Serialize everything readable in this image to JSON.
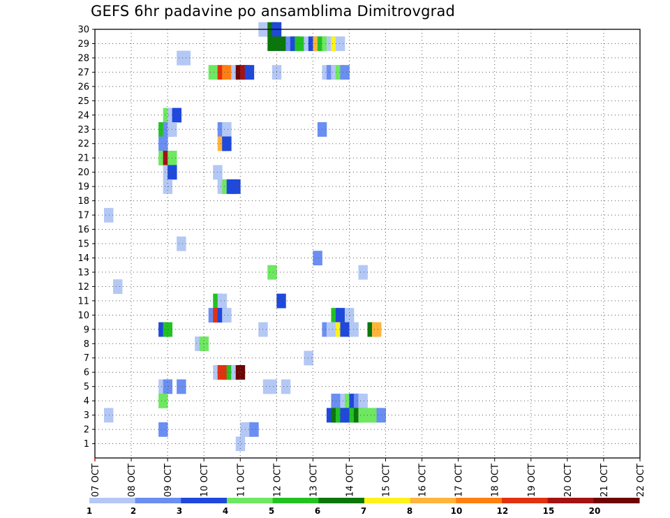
{
  "chart_data": {
    "type": "heatmap",
    "title": "GEFS 6hr padavine po ansamblima Dimitrovgrad",
    "xlabel": "",
    "ylabel": "",
    "x_tick_labels": [
      "07 OCT",
      "08 OCT",
      "09 OCT",
      "10 OCT",
      "11 OCT",
      "12 OCT",
      "13 OCT",
      "14 OCT",
      "15 OCT",
      "16 OCT",
      "17 OCT",
      "18 OCT",
      "19 OCT",
      "20 OCT",
      "21 OCT",
      "22 OCT"
    ],
    "xlim_days": [
      7,
      22
    ],
    "y_tick_labels": [
      "1",
      "2",
      "3",
      "4",
      "5",
      "6",
      "7",
      "8",
      "9",
      "10",
      "11",
      "12",
      "13",
      "14",
      "15",
      "16",
      "17",
      "18",
      "19",
      "20",
      "21",
      "22",
      "23",
      "24",
      "25",
      "26",
      "27",
      "28",
      "29",
      "30"
    ],
    "ylim": [
      0,
      30
    ],
    "grid": true,
    "legend": {
      "placement": "bottom",
      "colors": [
        "#b4c8f5",
        "#6a8ef2",
        "#1f48dc",
        "#6ee860",
        "#22c222",
        "#0b760b",
        "#fff21a",
        "#ffb43b",
        "#ff8010",
        "#e13210",
        "#a51212",
        "#6e0404"
      ],
      "labels": [
        "1",
        "2",
        "3",
        "4",
        "5",
        "6",
        "7",
        "8",
        "10",
        "12",
        "15",
        "20"
      ]
    },
    "cells": [
      {
        "day": 11.5,
        "m": 30,
        "v": 1.5
      },
      {
        "day": 11.75,
        "m": 30,
        "v": 6.5
      },
      {
        "day": 11.875,
        "m": 30,
        "v": 3.5
      },
      {
        "day": 11.75,
        "m": 29,
        "v": 6.5
      },
      {
        "day": 12.0,
        "m": 29,
        "v": 6.5
      },
      {
        "day": 12.25,
        "m": 29,
        "v": 2.5
      },
      {
        "day": 12.375,
        "m": 29,
        "v": 3.5
      },
      {
        "day": 12.5,
        "m": 29,
        "v": 5.5
      },
      {
        "day": 12.75,
        "m": 29,
        "v": 1.5
      },
      {
        "day": 12.875,
        "m": 29,
        "v": 3.5
      },
      {
        "day": 13.0,
        "m": 29,
        "v": 9
      },
      {
        "day": 13.125,
        "m": 29,
        "v": 5.5
      },
      {
        "day": 13.25,
        "m": 29,
        "v": 4.5
      },
      {
        "day": 13.375,
        "m": 29,
        "v": 1.5
      },
      {
        "day": 13.5,
        "m": 29,
        "v": 7.5
      },
      {
        "day": 13.625,
        "m": 29,
        "v": 1.5
      },
      {
        "day": 9.25,
        "m": 28,
        "v": 1.5
      },
      {
        "day": 9.375,
        "m": 28,
        "v": 1.5
      },
      {
        "day": 10.125,
        "m": 27,
        "v": 4.5
      },
      {
        "day": 10.375,
        "m": 27,
        "v": 13
      },
      {
        "day": 10.5,
        "m": 27,
        "v": 11
      },
      {
        "day": 10.75,
        "m": 27,
        "v": 1.5
      },
      {
        "day": 10.875,
        "m": 27,
        "v": 25
      },
      {
        "day": 11.0,
        "m": 27,
        "v": 17
      },
      {
        "day": 11.125,
        "m": 27,
        "v": 3.5
      },
      {
        "day": 11.875,
        "m": 27,
        "v": 1.5
      },
      {
        "day": 13.25,
        "m": 27,
        "v": 1.5
      },
      {
        "day": 13.375,
        "m": 27,
        "v": 2.5
      },
      {
        "day": 13.5,
        "m": 27,
        "v": 1.5
      },
      {
        "day": 13.625,
        "m": 27,
        "v": 4.5
      },
      {
        "day": 13.75,
        "m": 27,
        "v": 2.5
      },
      {
        "day": 8.875,
        "m": 24,
        "v": 4.5
      },
      {
        "day": 9.0,
        "m": 24,
        "v": 1.5
      },
      {
        "day": 9.125,
        "m": 24,
        "v": 3.5
      },
      {
        "day": 8.75,
        "m": 23,
        "v": 5.5
      },
      {
        "day": 8.875,
        "m": 23,
        "v": 2.5
      },
      {
        "day": 9.0,
        "m": 23,
        "v": 1.5
      },
      {
        "day": 10.375,
        "m": 23,
        "v": 2.5
      },
      {
        "day": 10.5,
        "m": 23,
        "v": 1.5
      },
      {
        "day": 13.125,
        "m": 23,
        "v": 2.5
      },
      {
        "day": 8.75,
        "m": 22,
        "v": 2.5
      },
      {
        "day": 10.375,
        "m": 22,
        "v": 9
      },
      {
        "day": 10.5,
        "m": 22,
        "v": 3.5
      },
      {
        "day": 8.75,
        "m": 21,
        "v": 4.5
      },
      {
        "day": 8.875,
        "m": 21,
        "v": 17
      },
      {
        "day": 9.0,
        "m": 21,
        "v": 4.5
      },
      {
        "day": 8.875,
        "m": 20,
        "v": 1.5
      },
      {
        "day": 9.0,
        "m": 20,
        "v": 3.5
      },
      {
        "day": 10.25,
        "m": 20,
        "v": 1.5
      },
      {
        "day": 8.875,
        "m": 19,
        "v": 1.5
      },
      {
        "day": 10.375,
        "m": 19,
        "v": 1.5
      },
      {
        "day": 10.5,
        "m": 19,
        "v": 4.5
      },
      {
        "day": 10.625,
        "m": 19,
        "v": 3.5
      },
      {
        "day": 10.75,
        "m": 19,
        "v": 3.5
      },
      {
        "day": 7.25,
        "m": 17,
        "v": 1.5
      },
      {
        "day": 9.25,
        "m": 15,
        "v": 1.5
      },
      {
        "day": 13.0,
        "m": 14,
        "v": 2.5
      },
      {
        "day": 11.75,
        "m": 13,
        "v": 4.5
      },
      {
        "day": 14.25,
        "m": 13,
        "v": 1.5
      },
      {
        "day": 7.5,
        "m": 12,
        "v": 1.5
      },
      {
        "day": 10.25,
        "m": 11,
        "v": 5.5
      },
      {
        "day": 10.375,
        "m": 11,
        "v": 1.5
      },
      {
        "day": 12.0,
        "m": 11,
        "v": 3.5
      },
      {
        "day": 10.125,
        "m": 10,
        "v": 2.5
      },
      {
        "day": 10.25,
        "m": 10,
        "v": 13
      },
      {
        "day": 10.375,
        "m": 10,
        "v": 3.5
      },
      {
        "day": 10.5,
        "m": 10,
        "v": 1.5
      },
      {
        "day": 13.5,
        "m": 10,
        "v": 5.5
      },
      {
        "day": 13.625,
        "m": 10,
        "v": 3.5
      },
      {
        "day": 13.875,
        "m": 10,
        "v": 1.5
      },
      {
        "day": 8.75,
        "m": 9,
        "v": 3.5
      },
      {
        "day": 8.875,
        "m": 9,
        "v": 5.5
      },
      {
        "day": 11.5,
        "m": 9,
        "v": 1.5
      },
      {
        "day": 13.25,
        "m": 9,
        "v": 2.5
      },
      {
        "day": 13.375,
        "m": 9,
        "v": 1.5
      },
      {
        "day": 13.5,
        "m": 9,
        "v": 1.5
      },
      {
        "day": 13.625,
        "m": 9,
        "v": 7.5
      },
      {
        "day": 13.75,
        "m": 9,
        "v": 3.5
      },
      {
        "day": 14.0,
        "m": 9,
        "v": 1.5
      },
      {
        "day": 14.5,
        "m": 9,
        "v": 6.5
      },
      {
        "day": 14.625,
        "m": 9,
        "v": 9
      },
      {
        "day": 9.75,
        "m": 8,
        "v": 1.5
      },
      {
        "day": 9.875,
        "m": 8,
        "v": 4.5
      },
      {
        "day": 12.75,
        "m": 7,
        "v": 1.5
      },
      {
        "day": 10.25,
        "m": 6,
        "v": 1.5
      },
      {
        "day": 10.375,
        "m": 6,
        "v": 13
      },
      {
        "day": 10.5,
        "m": 6,
        "v": 13
      },
      {
        "day": 10.625,
        "m": 6,
        "v": 5.5
      },
      {
        "day": 10.75,
        "m": 6,
        "v": 1.5
      },
      {
        "day": 10.875,
        "m": 6,
        "v": 25
      },
      {
        "day": 8.75,
        "m": 5,
        "v": 1.5
      },
      {
        "day": 8.875,
        "m": 5,
        "v": 2.5
      },
      {
        "day": 9.25,
        "m": 5,
        "v": 2.5
      },
      {
        "day": 11.625,
        "m": 5,
        "v": 1.5
      },
      {
        "day": 11.75,
        "m": 5,
        "v": 1.5
      },
      {
        "day": 12.125,
        "m": 5,
        "v": 1.5
      },
      {
        "day": 8.75,
        "m": 4,
        "v": 4.5
      },
      {
        "day": 13.5,
        "m": 4,
        "v": 2.5
      },
      {
        "day": 13.75,
        "m": 4,
        "v": 1.5
      },
      {
        "day": 13.875,
        "m": 4,
        "v": 4.5
      },
      {
        "day": 14.0,
        "m": 4,
        "v": 3.5
      },
      {
        "day": 14.125,
        "m": 4,
        "v": 2.5
      },
      {
        "day": 14.25,
        "m": 4,
        "v": 1.5
      },
      {
        "day": 7.25,
        "m": 3,
        "v": 1.5
      },
      {
        "day": 13.375,
        "m": 3,
        "v": 3.5
      },
      {
        "day": 13.5,
        "m": 3,
        "v": 6.5
      },
      {
        "day": 13.625,
        "m": 3,
        "v": 5.5
      },
      {
        "day": 13.75,
        "m": 3,
        "v": 3.5
      },
      {
        "day": 13.875,
        "m": 3,
        "v": 3.5
      },
      {
        "day": 14.0,
        "m": 3,
        "v": 5.5
      },
      {
        "day": 14.125,
        "m": 3,
        "v": 6.5
      },
      {
        "day": 14.25,
        "m": 3,
        "v": 4.5
      },
      {
        "day": 14.375,
        "m": 3,
        "v": 4.5
      },
      {
        "day": 14.5,
        "m": 3,
        "v": 4.5
      },
      {
        "day": 14.625,
        "m": 3,
        "v": 4.5
      },
      {
        "day": 14.75,
        "m": 3,
        "v": 2.5
      },
      {
        "day": 8.75,
        "m": 2,
        "v": 2.5
      },
      {
        "day": 11.0,
        "m": 2,
        "v": 1.5
      },
      {
        "day": 11.125,
        "m": 2,
        "v": 1.5
      },
      {
        "day": 11.25,
        "m": 2,
        "v": 2.5
      },
      {
        "day": 10.875,
        "m": 1,
        "v": 1.5
      }
    ]
  }
}
